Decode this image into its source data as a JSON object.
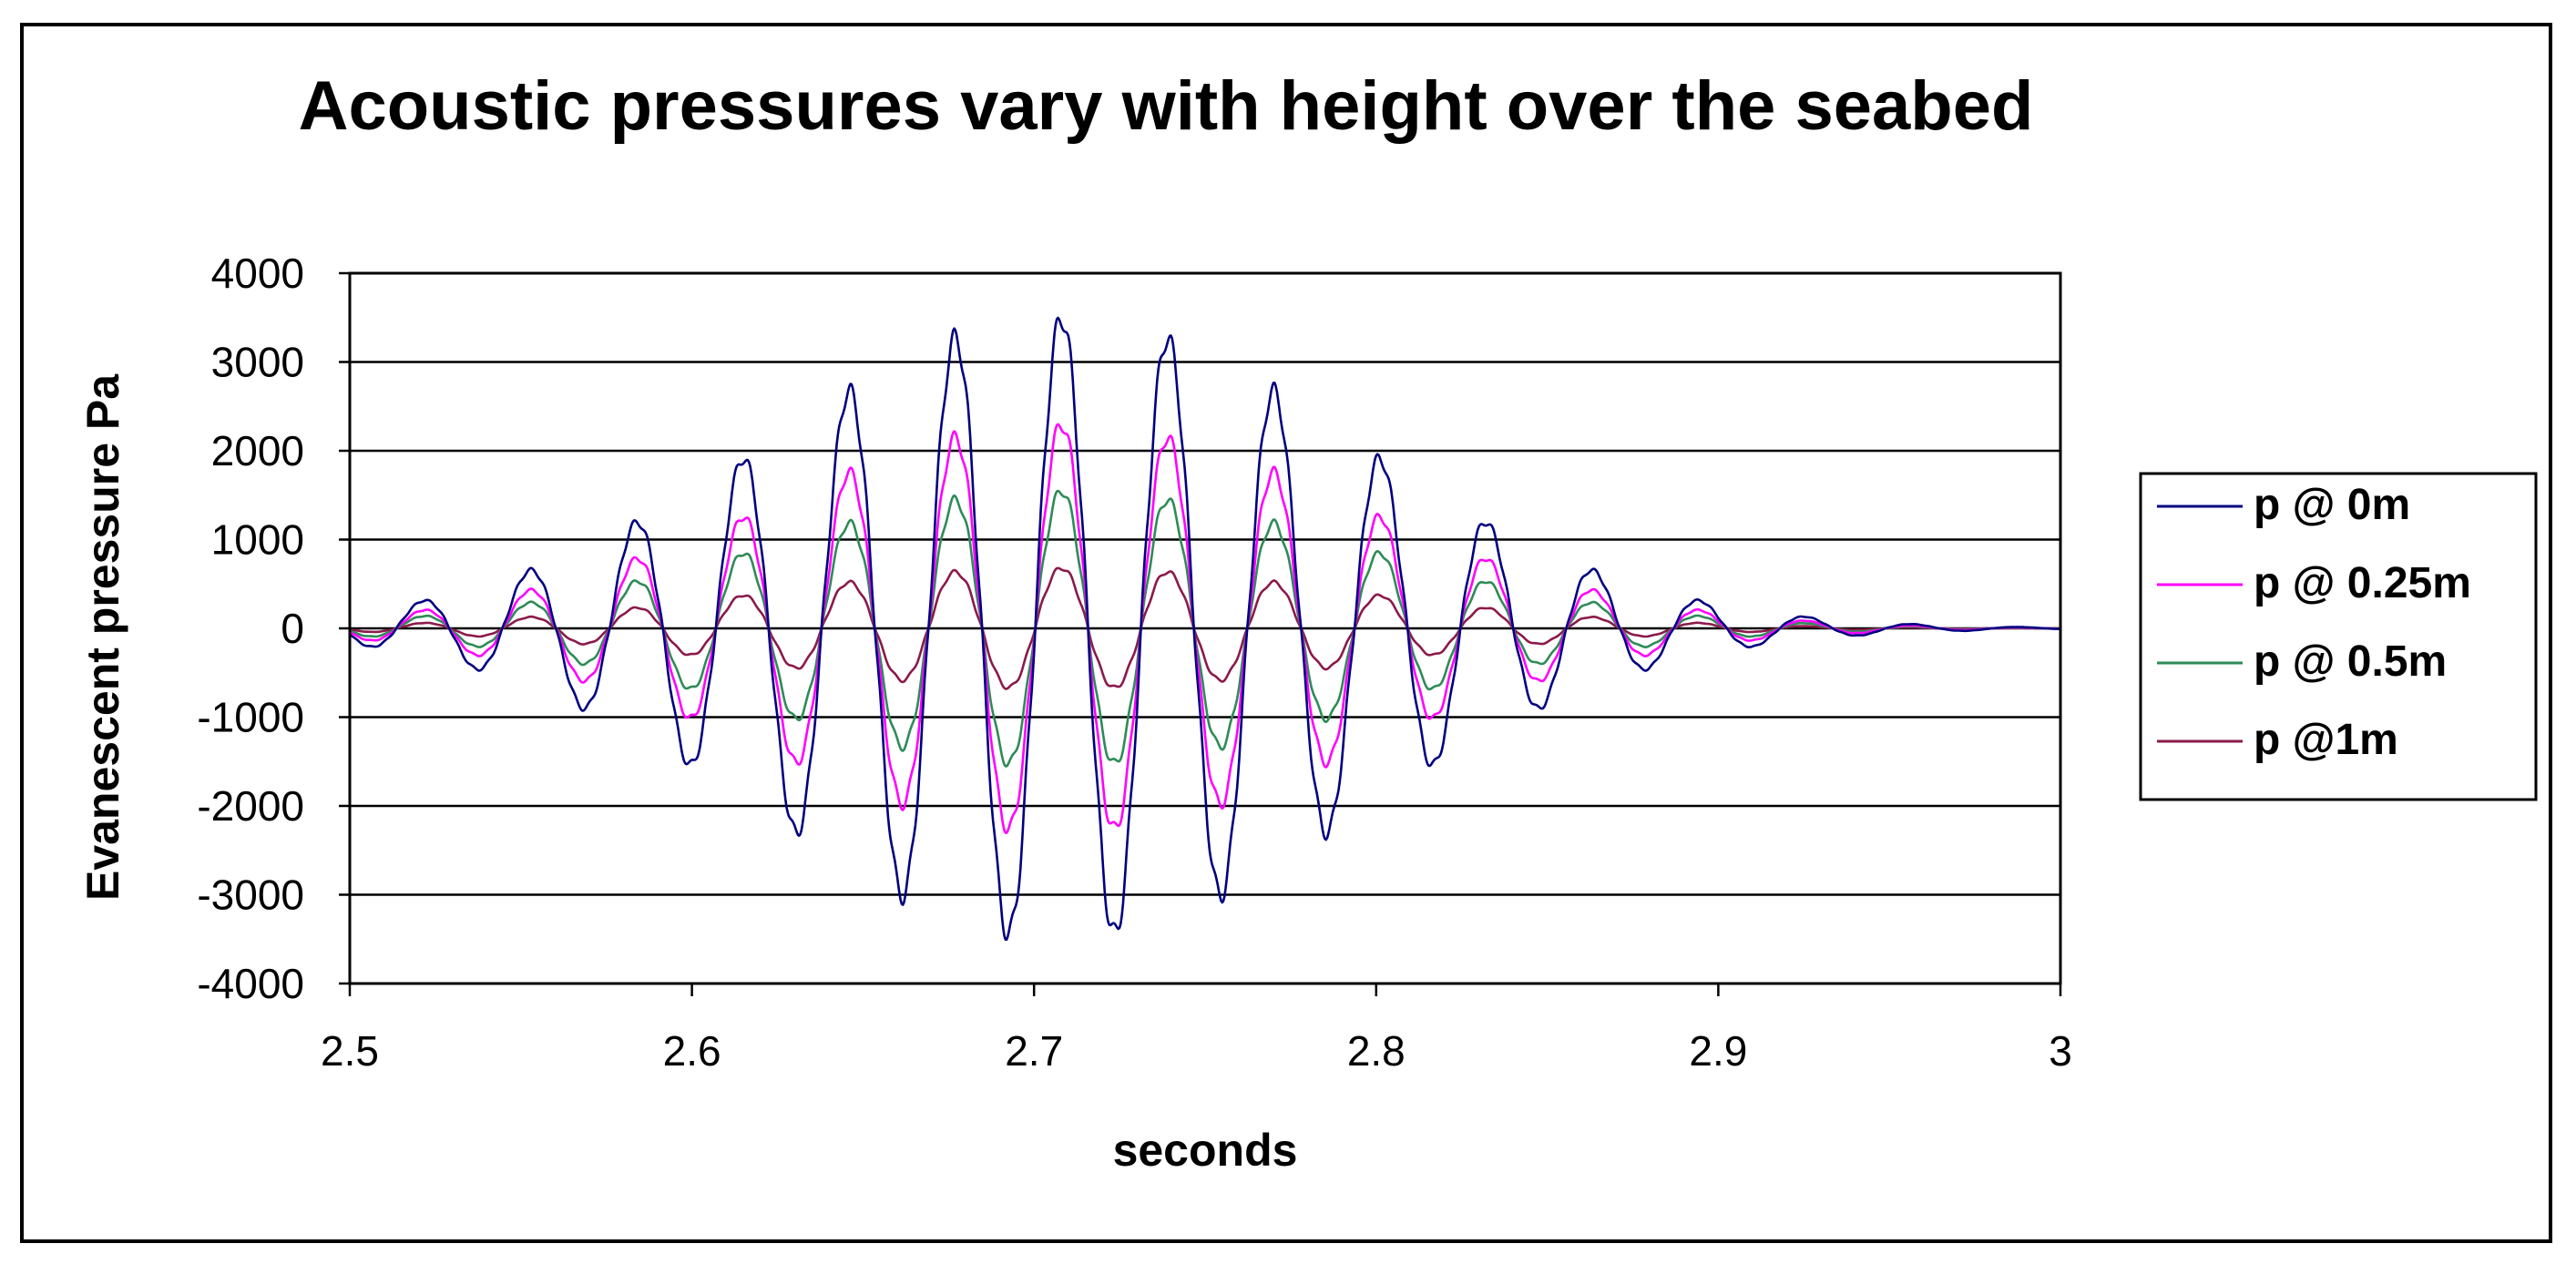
{
  "chart_data": {
    "type": "line",
    "title": "Acoustic pressures vary with height over the seabed",
    "xlabel": "seconds",
    "ylabel": "Evanescent pressure Pa",
    "xlim": [
      2.5,
      3.0
    ],
    "ylim": [
      -4000,
      4000
    ],
    "x_ticks": [
      "2.5",
      "2.6",
      "2.7",
      "2.8",
      "2.9",
      "3"
    ],
    "y_ticks": [
      "4000",
      "3000",
      "2000",
      "1000",
      "0",
      "-1000",
      "-2000",
      "-3000",
      "-4000"
    ],
    "grid": "horizontal",
    "legend_position": "right",
    "series": [
      {
        "name": "p @ 0m",
        "color": "#000080",
        "peak_amplitude": 3500
      },
      {
        "name": "p @ 0.25m",
        "color": "#ff00ff",
        "peak_amplitude": 2300
      },
      {
        "name": "p @ 0.5m",
        "color": "#2e8b57",
        "peak_amplitude": 1550
      },
      {
        "name": "p @1m",
        "color": "#8b1a4a",
        "peak_amplitude": 680
      }
    ],
    "waveform": {
      "period_s": 0.0311,
      "peak_time_s": 2.708,
      "envelope_width_s": 0.12,
      "samples": 1500
    }
  }
}
